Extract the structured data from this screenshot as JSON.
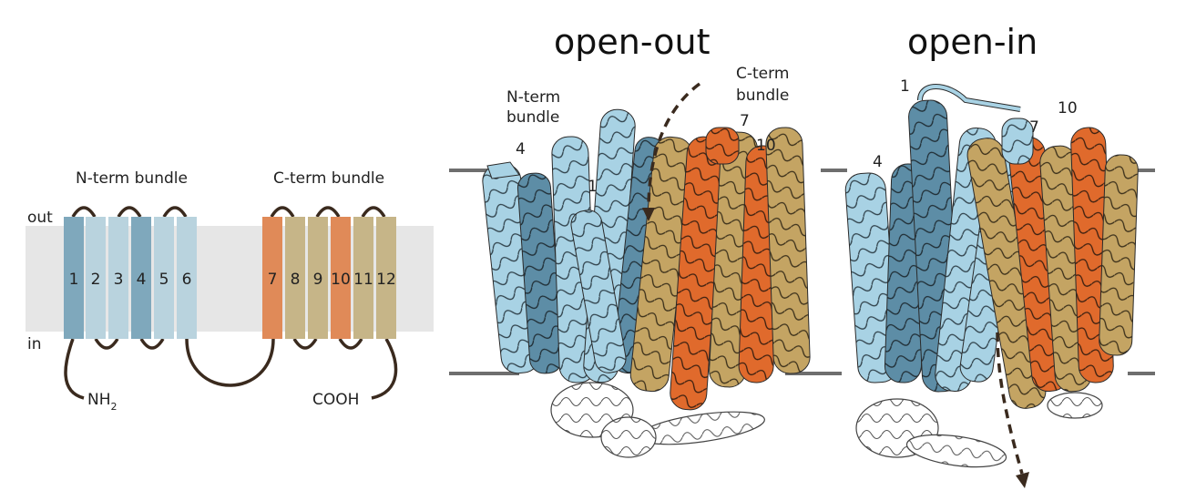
{
  "topology": {
    "side_out": "out",
    "side_in": "in",
    "n_bundle_label": "N-term bundle",
    "c_bundle_label": "C-term bundle",
    "n_terminus": "NH",
    "n_terminus_sub": "2",
    "c_terminus": "COOH",
    "helices": [
      "1",
      "2",
      "3",
      "4",
      "5",
      "6",
      "7",
      "8",
      "9",
      "10",
      "11",
      "12"
    ]
  },
  "open_out": {
    "title": "open-out",
    "n_bundle_line1": "N-term",
    "n_bundle_line2": "bundle",
    "c_bundle_line1": "C-term",
    "c_bundle_line2": "bundle",
    "helix_1": "1",
    "helix_4": "4",
    "helix_7": "7",
    "helix_10": "10"
  },
  "open_in": {
    "title": "open-in",
    "helix_1": "1",
    "helix_4": "4",
    "helix_7": "7",
    "helix_10": "10"
  },
  "colors": {
    "membrane": "#e6e6e6",
    "light_blue": "#a8d2e4",
    "pale_blue": "#b9d3de",
    "dark_blue": "#5d8da6",
    "helix_blue_left": "#7fa8bc",
    "orange": "#e08a58",
    "orange_dark": "#e06a2c",
    "tan": "#c6b588",
    "tan_dark": "#c4a463",
    "loop": "#3a2a1e",
    "membrane_line": "#6e6e6e"
  }
}
